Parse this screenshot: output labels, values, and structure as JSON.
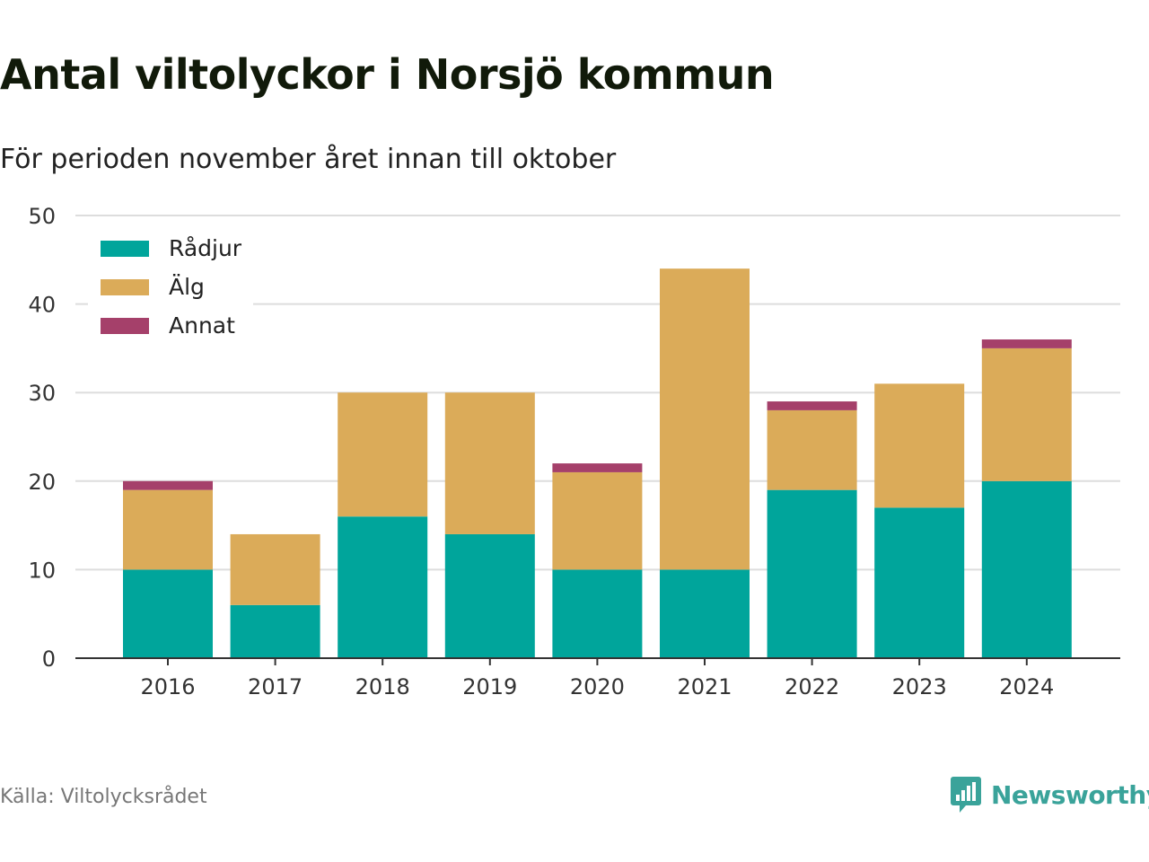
{
  "header": {
    "title": "Antal viltolyckor i Norsjö kommun",
    "subtitle": "För perioden november året innan till oktober"
  },
  "footer": {
    "source": "Källa: Viltolycksrådet",
    "brand": "Newsworthy",
    "brand_icon": "bar-chart-icon"
  },
  "colors": {
    "radjur": "#00a59b",
    "alg": "#dbab59",
    "annat": "#a5406a",
    "grid": "#dddddd",
    "axis": "#333333"
  },
  "chart_data": {
    "type": "bar",
    "stacked": true,
    "categories": [
      "2016",
      "2017",
      "2018",
      "2019",
      "2020",
      "2021",
      "2022",
      "2023",
      "2024"
    ],
    "series": [
      {
        "name": "Rådjur",
        "color": "#00a59b",
        "values": [
          10,
          6,
          16,
          14,
          10,
          10,
          19,
          17,
          20
        ]
      },
      {
        "name": "Älg",
        "color": "#dbab59",
        "values": [
          9,
          8,
          14,
          16,
          11,
          34,
          9,
          14,
          15
        ]
      },
      {
        "name": "Annat",
        "color": "#a5406a",
        "values": [
          1,
          0,
          0,
          0,
          1,
          0,
          1,
          0,
          1
        ]
      }
    ],
    "ylim": [
      0,
      50
    ],
    "yticks": [
      0,
      10,
      20,
      30,
      40,
      50
    ],
    "grid": true,
    "legend": "top-left"
  }
}
